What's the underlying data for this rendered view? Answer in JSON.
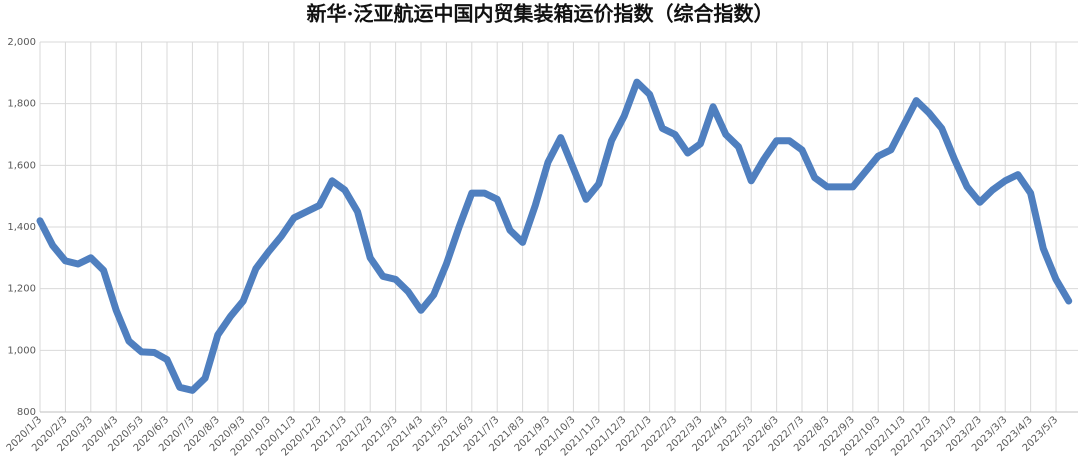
{
  "chart_data": {
    "type": "line",
    "title": "新华·泛亚航运中国内贸集装箱运价指数（综合指数）",
    "categories": [
      "2020/1/3",
      null,
      "2020/2/3",
      null,
      "2020/3/3",
      null,
      "2020/4/3",
      null,
      "2020/5/3",
      null,
      "2020/6/3",
      null,
      "2020/7/3",
      null,
      "2020/8/3",
      null,
      "2020/9/3",
      null,
      "2020/10/3",
      null,
      "2020/11/3",
      null,
      "2020/12/3",
      null,
      "2021/1/3",
      null,
      "2021/2/3",
      null,
      "2021/3/3",
      null,
      "2021/4/3",
      null,
      "2021/5/3",
      null,
      "2021/6/3",
      null,
      "2021/7/3",
      null,
      "2021/8/3",
      null,
      "2021/9/3",
      null,
      "2021/10/3",
      null,
      "2021/11/3",
      null,
      "2021/12/3",
      null,
      "2022/1/3",
      null,
      "2022/2/3",
      null,
      "2022/3/3",
      null,
      "2022/4/3",
      null,
      "2022/5/3",
      null,
      "2022/6/3",
      null,
      "2022/7/3",
      null,
      "2022/8/3",
      null,
      "2022/9/3",
      null,
      "2022/10/3",
      null,
      "2022/11/3",
      null,
      "2022/12/3",
      null,
      "2023/1/3",
      null,
      "2023/2/3",
      null,
      "2023/3/3",
      null,
      "2023/4/3",
      null,
      "2023/5/3",
      null
    ],
    "series": [
      {
        "color": "#4f7fbf",
        "values": [
          1420,
          1340,
          1290,
          1280,
          1300,
          1260,
          1130,
          1030,
          995,
          993,
          970,
          880,
          870,
          910,
          1050,
          1110,
          1160,
          1265,
          1320,
          1370,
          1430,
          1450,
          1470,
          1550,
          1520,
          1450,
          1300,
          1240,
          1230,
          1190,
          1130,
          1180,
          1280,
          1400,
          1510,
          1510,
          1490,
          1390,
          1350,
          1470,
          1610,
          1690,
          1590,
          1490,
          1540,
          1680,
          1760,
          1870,
          1830,
          1720,
          1700,
          1640,
          1670,
          1790,
          1700,
          1660,
          1550,
          1620,
          1680,
          1680,
          1650,
          1560,
          1530,
          1530,
          1530,
          1580,
          1630,
          1650,
          1730,
          1810,
          1770,
          1720,
          1620,
          1530,
          1480,
          1520,
          1550,
          1570,
          1510,
          1330,
          1230,
          1160
        ]
      }
    ],
    "ylim": [
      800,
      2000
    ],
    "yticks": [
      800,
      {
        "value": 1000,
        "label": "1,000"
      },
      {
        "value": 1200,
        "label": "1,200"
      },
      {
        "value": 1400,
        "label": "1,400"
      },
      {
        "value": 1600,
        "label": "1,600"
      },
      {
        "value": 1800,
        "label": "1,800"
      },
      {
        "value": 2000,
        "label": "2,000"
      }
    ],
    "grid": true
  }
}
